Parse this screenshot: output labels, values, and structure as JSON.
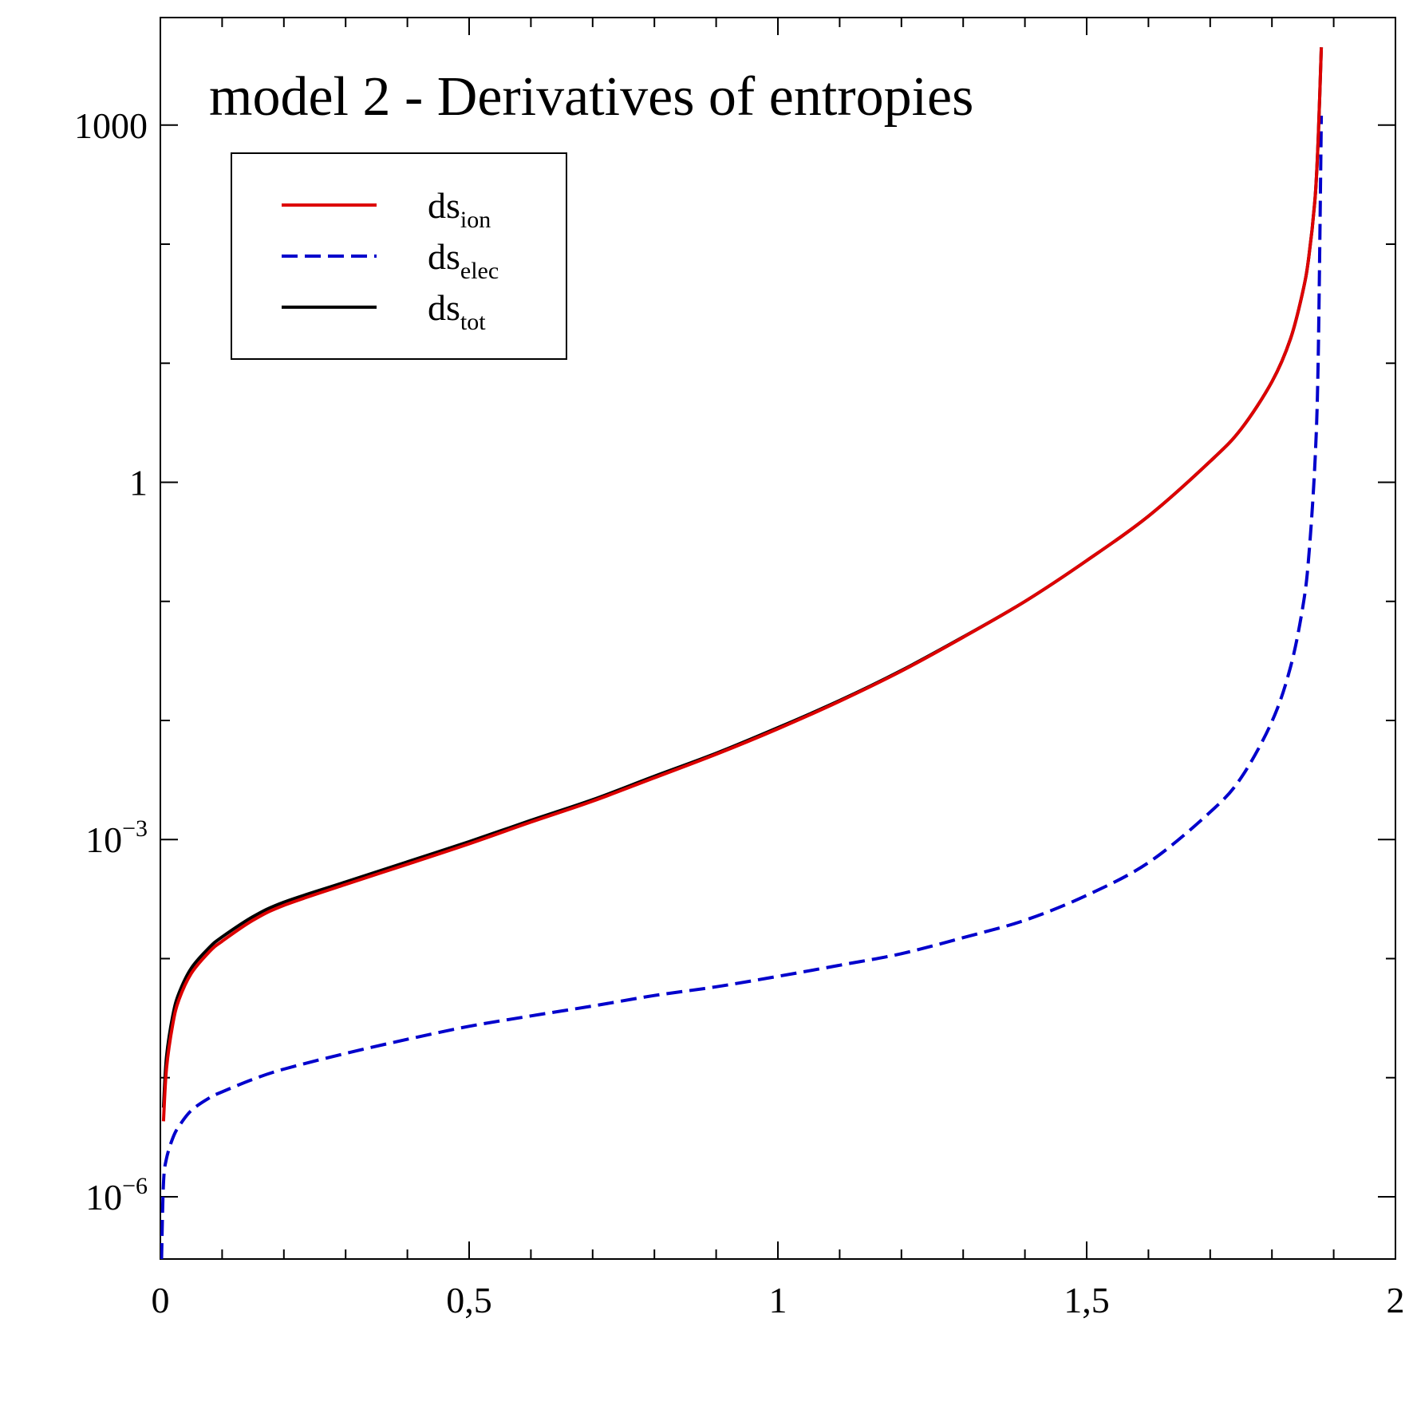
{
  "chart_data": {
    "type": "line",
    "title": "model 2 - Derivatives of entropies",
    "xlabel": "",
    "ylabel": "",
    "xlim": [
      0,
      2
    ],
    "ylim": [
      3e-07,
      8000
    ],
    "yscale": "log",
    "grid": false,
    "legend_position": "top-left",
    "x_ticks": [
      {
        "value": 0,
        "label": "0"
      },
      {
        "value": 0.5,
        "label": "0,5"
      },
      {
        "value": 1,
        "label": "1"
      },
      {
        "value": 1.5,
        "label": "1,5"
      },
      {
        "value": 2,
        "label": "2"
      }
    ],
    "y_ticks": [
      {
        "value": 1000,
        "base": "1000",
        "exp": ""
      },
      {
        "value": 1,
        "base": "1",
        "exp": ""
      },
      {
        "value": 0.001,
        "base": "10",
        "exp": "−3"
      },
      {
        "value": 1e-06,
        "base": "10",
        "exp": "−6"
      }
    ],
    "series": [
      {
        "name": "ds",
        "subscript": "ion",
        "color": "#dd0000",
        "dash": "solid",
        "x": [
          0.005,
          0.01,
          0.02,
          0.03,
          0.05,
          0.08,
          0.1,
          0.15,
          0.2,
          0.3,
          0.4,
          0.5,
          0.6,
          0.7,
          0.8,
          0.9,
          1.0,
          1.1,
          1.2,
          1.3,
          1.4,
          1.5,
          1.6,
          1.7,
          1.75,
          1.8,
          1.83,
          1.85,
          1.86,
          1.87,
          1.875,
          1.88
        ],
        "y": [
          4.3e-06,
          1.2e-05,
          2.8e-05,
          4.5e-05,
          7.5e-05,
          0.000115,
          0.00014,
          0.00021,
          0.00028,
          0.00042,
          0.00062,
          0.00092,
          0.0014,
          0.0021,
          0.0033,
          0.0052,
          0.0085,
          0.0145,
          0.026,
          0.05,
          0.1,
          0.22,
          0.52,
          1.5,
          2.8,
          7,
          16,
          40,
          80,
          250,
          800,
          4500
        ]
      },
      {
        "name": "ds",
        "subscript": "elec",
        "color": "#0000cc",
        "dash": "dashed",
        "x": [
          0.002,
          0.005,
          0.01,
          0.02,
          0.03,
          0.05,
          0.08,
          0.1,
          0.15,
          0.2,
          0.3,
          0.4,
          0.5,
          0.6,
          0.7,
          0.8,
          0.9,
          1.0,
          1.1,
          1.2,
          1.3,
          1.4,
          1.5,
          1.6,
          1.7,
          1.75,
          1.8,
          1.83,
          1.85,
          1.86,
          1.87,
          1.875,
          1.88
        ],
        "y": [
          3e-07,
          1.3e-06,
          2.1e-06,
          3.1e-06,
          3.9e-06,
          5.3e-06,
          6.8e-06,
          7.6e-06,
          9.7e-06,
          1.18e-05,
          1.6e-05,
          2.1e-05,
          2.7e-05,
          3.3e-05,
          4e-05,
          4.9e-05,
          5.8e-05,
          7.1e-05,
          8.8e-05,
          0.00011,
          0.00015,
          0.00021,
          0.00034,
          0.00064,
          0.0017,
          0.0033,
          0.0098,
          0.028,
          0.09,
          0.25,
          1.6,
          12,
          1200
        ]
      },
      {
        "name": "ds",
        "subscript": "tot",
        "color": "#000000",
        "dash": "solid",
        "x": [
          0.005,
          0.01,
          0.02,
          0.03,
          0.05,
          0.08,
          0.1,
          0.15,
          0.2,
          0.3,
          0.4,
          0.5,
          0.6,
          0.7,
          0.8,
          0.9,
          1.0,
          1.1,
          1.2,
          1.3,
          1.4,
          1.5,
          1.6,
          1.7,
          1.75,
          1.8,
          1.83,
          1.85,
          1.86,
          1.87,
          1.875,
          1.88
        ],
        "y": [
          5.6e-06,
          1.5e-05,
          3.3e-05,
          5.1e-05,
          8.3e-05,
          0.000125,
          0.000152,
          0.000225,
          0.000298,
          0.00044,
          0.00065,
          0.00096,
          0.00145,
          0.00216,
          0.0034,
          0.0053,
          0.0087,
          0.0147,
          0.0263,
          0.0503,
          0.1,
          0.22,
          0.52,
          1.5,
          2.8,
          7,
          16,
          40,
          80,
          250,
          800,
          4500
        ]
      }
    ]
  }
}
